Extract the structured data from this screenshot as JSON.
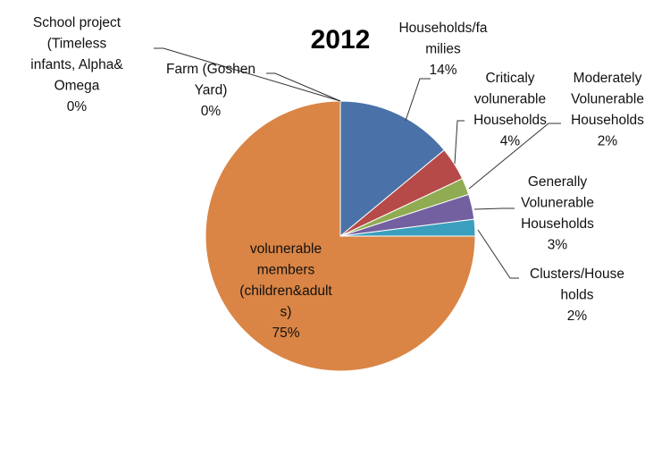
{
  "chart_data": {
    "type": "pie",
    "title": "2012",
    "start_angle_deg": 0,
    "direction": "clockwise",
    "slices": [
      {
        "label": "Households/fa\nmilies",
        "value": 14,
        "display": "14%",
        "color": "#4a72a8"
      },
      {
        "label": "Criticaly\nvolunerable\nHouseholds",
        "value": 4,
        "display": "4%",
        "color": "#b54a48"
      },
      {
        "label": "Moderately\nVolunerable\nHouseholds",
        "value": 2,
        "display": "2%",
        "color": "#8fac52"
      },
      {
        "label": "Generally\nVolunerable\nHouseholds",
        "value": 3,
        "display": "3%",
        "color": "#7360a0"
      },
      {
        "label": "Clusters/House\nholds",
        "value": 2,
        "display": "2%",
        "color": "#3a9fbd"
      },
      {
        "label": "volunerable\nmembers\n(children&adult\ns)",
        "value": 75,
        "display": "75%",
        "color": "#da8545"
      },
      {
        "label": "School project\n(Timeless\ninfants, Alpha&\nOmega",
        "value": 0,
        "display": "0%",
        "color": "#4a72a8"
      },
      {
        "label": "Farm (Goshen\nYard)",
        "value": 0,
        "display": "0%",
        "color": "#b54a48"
      }
    ],
    "legend": "none"
  }
}
